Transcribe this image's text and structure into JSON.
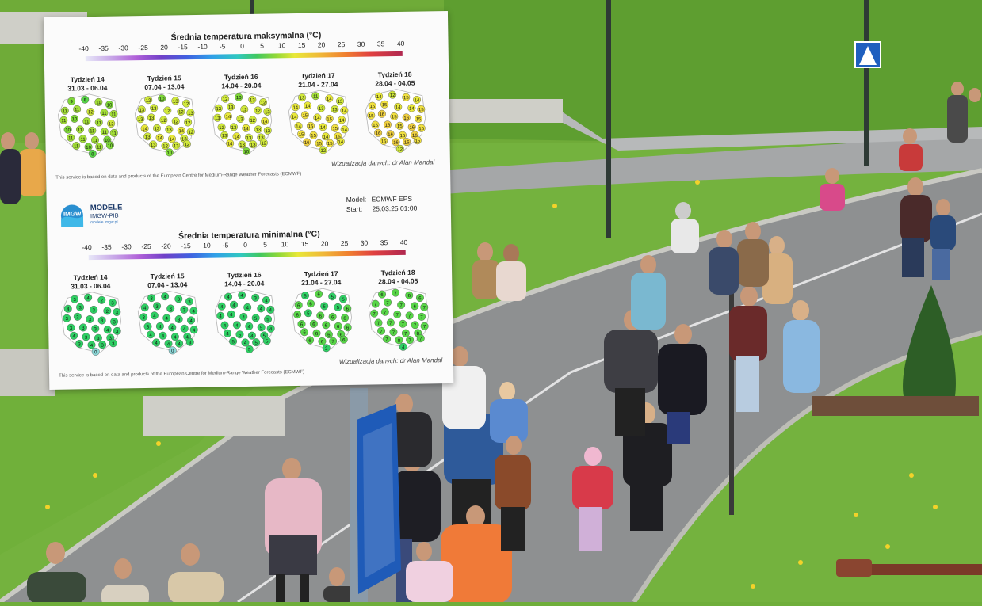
{
  "colors": {
    "grass": "#6fae3a",
    "path": "#8c8e8f",
    "card_bg": "#fbfbfb"
  },
  "infographic": {
    "max_title": "Średnia temperatura maksymalna (°C)",
    "min_title": "Średnia temperatura minimalna (°C)",
    "scale": [
      "-40",
      "-35",
      "-30",
      "-25",
      "-20",
      "-15",
      "-10",
      "-5",
      "0",
      "5",
      "10",
      "15",
      "20",
      "25",
      "30",
      "35",
      "40"
    ],
    "weeks": [
      {
        "name": "Tydzień 14",
        "dates": "31.03 - 06.04"
      },
      {
        "name": "Tydzień 15",
        "dates": "07.04 - 13.04"
      },
      {
        "name": "Tydzień 16",
        "dates": "14.04 - 20.04"
      },
      {
        "name": "Tydzień 17",
        "dates": "21.04 - 27.04"
      },
      {
        "name": "Tydzień 18",
        "dates": "28.04 - 04.05"
      }
    ],
    "max_values": [
      [
        "9",
        "8",
        "11",
        "10",
        "11",
        "11",
        "12",
        "11",
        "11",
        "11",
        "10",
        "11",
        "11",
        "12",
        "10",
        "11",
        "11",
        "11",
        "11",
        "11",
        "11",
        "11",
        "10",
        "11",
        "10",
        "11",
        "10",
        "8"
      ],
      [
        "12",
        "10",
        "13",
        "12",
        "13",
        "13",
        "12",
        "12",
        "13",
        "13",
        "13",
        "12",
        "12",
        "12",
        "14",
        "13",
        "13",
        "14",
        "12",
        "13",
        "14",
        "14",
        "13",
        "13",
        "12",
        "13",
        "12",
        "10"
      ],
      [
        "12",
        "10",
        "13",
        "12",
        "13",
        "13",
        "12",
        "12",
        "13",
        "13",
        "14",
        "13",
        "12",
        "14",
        "13",
        "13",
        "14",
        "13",
        "13",
        "13",
        "14",
        "13",
        "13",
        "14",
        "13",
        "13",
        "12",
        "10"
      ],
      [
        "13",
        "11",
        "14",
        "13",
        "14",
        "14",
        "13",
        "13",
        "14",
        "14",
        "15",
        "14",
        "15",
        "14",
        "14",
        "15",
        "14",
        "15",
        "14",
        "15",
        "15",
        "14",
        "15",
        "16",
        "15",
        "15",
        "14",
        "12"
      ],
      [
        "14",
        "12",
        "15",
        "14",
        "15",
        "15",
        "14",
        "14",
        "15",
        "15",
        "16",
        "15",
        "16",
        "15",
        "15",
        "16",
        "15",
        "16",
        "15",
        "16",
        "16",
        "15",
        "16",
        "15",
        "16",
        "16",
        "15",
        "12"
      ]
    ],
    "min_values": [
      [
        "3",
        "4",
        "2",
        "3",
        "4",
        "3",
        "3",
        "2",
        "3",
        "3",
        "2",
        "3",
        "3",
        "3",
        "3",
        "3",
        "3",
        "4",
        "3",
        "4",
        "3",
        "3",
        "3",
        "3",
        "4",
        "3",
        "3",
        "0"
      ],
      [
        "3",
        "4",
        "3",
        "3",
        "4",
        "3",
        "3",
        "3",
        "4",
        "3",
        "4",
        "4",
        "3",
        "4",
        "3",
        "4",
        "4",
        "4",
        "4",
        "4",
        "4",
        "4",
        "4",
        "4",
        "4",
        "4",
        "3",
        "0"
      ],
      [
        "4",
        "4",
        "3",
        "4",
        "4",
        "4",
        "4",
        "4",
        "4",
        "4",
        "4",
        "4",
        "5",
        "5",
        "4",
        "4",
        "4",
        "5",
        "4",
        "4",
        "5",
        "4",
        "5",
        "5",
        "4",
        "5",
        "5",
        "5"
      ],
      [
        "5",
        "6",
        "5",
        "5",
        "6",
        "6",
        "5",
        "5",
        "6",
        "6",
        "5",
        "6",
        "6",
        "6",
        "6",
        "6",
        "6",
        "6",
        "6",
        "6",
        "6",
        "6",
        "6",
        "6",
        "6",
        "7",
        "6",
        "2"
      ],
      [
        "6",
        "7",
        "6",
        "6",
        "7",
        "7",
        "7",
        "6",
        "7",
        "7",
        "7",
        "7",
        "7",
        "7",
        "7",
        "7",
        "7",
        "7",
        "7",
        "7",
        "7",
        "7",
        "8",
        "7",
        "8",
        "7",
        "7",
        "4"
      ]
    ],
    "footer": "This service is based on data and products of the European Centre for Medium-Range Weather Forecasts (ECMWF)",
    "viz": "Wizualizacja danych: dr Alan Mandal",
    "model_label": "Model:",
    "model_value": "ECMWF EPS",
    "start_label": "Start:",
    "start_value": "25.03.25 01:00",
    "logo_badge": "IMGW",
    "logo_title": "MODELE",
    "logo_sub": "IMGW-PIB",
    "logo_url": "modele.imgw.pl"
  }
}
